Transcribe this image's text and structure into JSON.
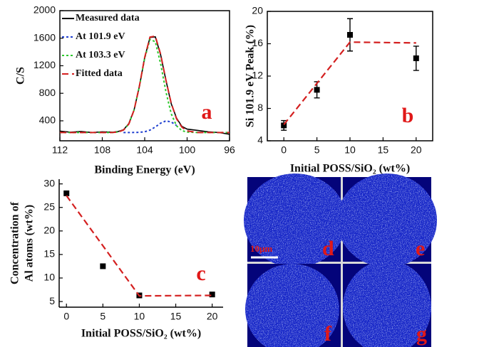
{
  "chart_data": [
    {
      "type": "line",
      "panel_label": "a",
      "xlabel": "Binding Energy (eV)",
      "ylabel": "C/S",
      "xlim": [
        112,
        96
      ],
      "xticks": [
        112,
        108,
        104,
        100,
        96
      ],
      "ylim": [
        110,
        2000
      ],
      "yticks": [
        400,
        800,
        1200,
        1600,
        2000
      ],
      "legend": "upper left",
      "x": [
        112,
        111,
        110,
        109,
        108,
        107,
        106.5,
        106,
        105.5,
        105,
        104.5,
        104,
        103.5,
        103,
        102.5,
        102,
        101.5,
        101,
        100.5,
        100,
        99,
        98,
        97,
        96
      ],
      "series": [
        {
          "name": "Measured data",
          "color": "#000000",
          "style": "solid",
          "values": [
            250,
            235,
            245,
            230,
            240,
            235,
            245,
            270,
            360,
            560,
            900,
            1320,
            1610,
            1620,
            1360,
            990,
            650,
            440,
            320,
            280,
            260,
            240,
            230,
            205
          ]
        },
        {
          "name": "At 101.9 eV",
          "color": "#1f3fd0",
          "style": "dotted",
          "values": [
            null,
            null,
            null,
            null,
            null,
            null,
            null,
            230,
            230,
            231,
            233,
            241,
            265,
            311,
            366,
            399,
            384,
            333,
            null,
            null,
            null,
            null,
            null,
            null
          ]
        },
        {
          "name": "At 103.3 eV",
          "color": "#2ec82e",
          "style": "dotted",
          "values": [
            230,
            230,
            230,
            230,
            230,
            231,
            238,
            266,
            353,
            556,
            902,
            1310,
            1582,
            1549,
            1232,
            823,
            503,
            328,
            258,
            236,
            230,
            230,
            230,
            230
          ]
        },
        {
          "name": "Fitted data",
          "color": "#d42020",
          "style": "dashed",
          "values": [
            230,
            230,
            230,
            230,
            230,
            231,
            238,
            266,
            353,
            557,
            905,
            1321,
            1617,
            1630,
            1368,
            992,
            657,
            431,
            309,
            254,
            230,
            230,
            230,
            230
          ]
        }
      ]
    },
    {
      "type": "scatter",
      "panel_label": "b",
      "xlabel": "Initial POSS/SiO₂ (wt%)",
      "ylabel": "Si 101.9 eV Peak (%)",
      "xlim": [
        -2.5,
        22.5
      ],
      "xticks": [
        0,
        5,
        10,
        15,
        20
      ],
      "ylim": [
        4,
        20
      ],
      "yticks": [
        4,
        8,
        12,
        16,
        20
      ],
      "x": [
        0,
        5,
        10,
        20
      ],
      "series": [
        {
          "color": "#000000",
          "values": [
            5.9,
            10.3,
            17.1,
            14.2
          ],
          "errors": [
            0.6,
            1.0,
            2.0,
            1.5
          ]
        },
        {
          "color": "#d42020",
          "style": "dashed",
          "x": [
            0,
            10,
            20
          ],
          "values": [
            6.0,
            16.2,
            16.1
          ]
        }
      ]
    },
    {
      "type": "scatter",
      "panel_label": "c",
      "xlabel": "Initial POSS/SiO₂ (wt%)",
      "ylabel": [
        "Concentration of",
        "Al atoms (wt%)"
      ],
      "xlim": [
        -1,
        21.5
      ],
      "xticks": [
        0,
        5,
        10,
        15,
        20
      ],
      "ylim": [
        3.8,
        31
      ],
      "yticks": [
        5,
        10,
        15,
        20,
        25,
        30
      ],
      "x": [
        0,
        5,
        10,
        20
      ],
      "series": [
        {
          "color": "#000000",
          "values": [
            28,
            12.5,
            6.3,
            6.5
          ]
        },
        {
          "color": "#d42020",
          "style": "dashed",
          "x": [
            0,
            10,
            20
          ],
          "values": [
            27.5,
            6.2,
            6.3
          ]
        }
      ]
    }
  ],
  "micrographs": {
    "panels": [
      "d",
      "e",
      "f",
      "g"
    ],
    "scale_bar": "10μm"
  }
}
